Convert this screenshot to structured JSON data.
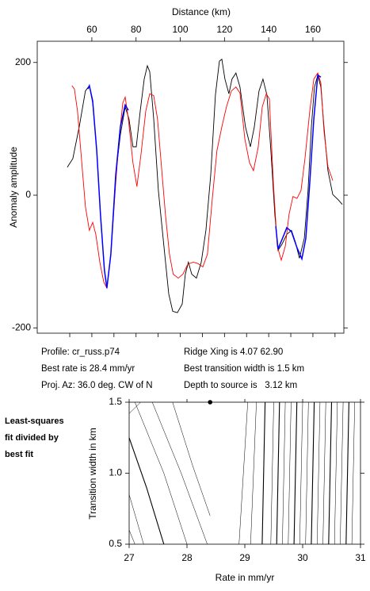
{
  "chart_data": [
    {
      "type": "line",
      "x_label": "Distance (km)",
      "y_label": "Anomaly amplitude",
      "xlim": [
        35.3,
        174
      ],
      "ylim": [
        -208,
        232
      ],
      "xticks": [
        60,
        80,
        100,
        120,
        140,
        160
      ],
      "xminorticks": [
        50,
        60,
        70,
        80,
        90,
        100,
        110,
        120,
        130,
        140,
        150,
        160,
        170
      ],
      "yticks": [
        -200,
        0,
        200
      ],
      "series": [
        {
          "color": "#000000",
          "x": [
            48.9,
            51.4,
            54.3,
            57.1,
            58.9,
            60.4,
            62.2,
            63.9,
            65.7,
            66.8,
            68.6,
            70.8,
            72.9,
            75.1,
            76.8,
            78.6,
            80.1,
            81.9,
            83.7,
            85.1,
            86.2,
            88.0,
            90.1,
            92.6,
            94.8,
            96.6,
            98.7,
            100.9,
            102.3,
            103.7,
            105.2,
            107.3,
            109.5,
            111.6,
            113.8,
            115.9,
            117.7,
            118.8,
            120.2,
            122.0,
            123.4,
            125.2,
            127.0,
            129.5,
            131.7,
            133.5,
            135.6,
            137.4,
            139.2,
            141.0,
            142.8,
            144.2,
            146.0,
            148.2,
            150.3,
            152.1,
            153.9,
            156.1,
            157.8,
            159.3,
            160.7,
            162.2,
            163.6,
            165.0,
            166.8,
            169.0,
            171.5,
            173.3
          ],
          "values": [
            42,
            55,
            103,
            157,
            165,
            139,
            67,
            -29,
            -113,
            -140,
            -89,
            31,
            91,
            133,
            115,
            73,
            73,
            127,
            175,
            195,
            186,
            115,
            7,
            -77,
            -149,
            -175,
            -177,
            -164,
            -119,
            -101,
            -119,
            -125,
            -101,
            -53,
            31,
            151,
            202,
            205,
            175,
            153,
            175,
            184,
            163,
            103,
            73,
            103,
            157,
            175,
            151,
            67,
            -29,
            -83,
            -74,
            -59,
            -53,
            -71,
            -95,
            -65,
            7,
            103,
            163,
            181,
            163,
            103,
            37,
            1,
            -7,
            -14
          ]
        },
        {
          "color": "#ff0000",
          "x": [
            51.0,
            52.1,
            53.5,
            55.3,
            57.1,
            58.9,
            60.4,
            61.8,
            63.6,
            65.4,
            66.8,
            68.6,
            70.8,
            72.5,
            74.0,
            75.1,
            76.5,
            78.6,
            80.4,
            82.2,
            84.4,
            86.2,
            88.0,
            89.7,
            91.5,
            93.3,
            95.1,
            96.8,
            99.1,
            101.2,
            103.4,
            105.9,
            108.0,
            110.2,
            112.3,
            114.5,
            116.6,
            118.8,
            120.9,
            123.1,
            125.2,
            127.0,
            129.2,
            131.3,
            133.1,
            135.3,
            137.1,
            138.9,
            140.3,
            142.1,
            143.9,
            145.7,
            147.5,
            149.2,
            151.0,
            152.8,
            154.6,
            156.4,
            158.6,
            160.4,
            162.2,
            163.6,
            165.0,
            166.8,
            169.0
          ],
          "values": [
            165,
            160,
            127,
            55,
            -17,
            -53,
            -41,
            -59,
            -101,
            -131,
            -140,
            -89,
            19,
            91,
            139,
            148,
            115,
            49,
            13,
            61,
            127,
            153,
            150,
            115,
            43,
            -29,
            -89,
            -119,
            -125,
            -119,
            -104,
            -101,
            -103,
            -108,
            -89,
            -5,
            67,
            103,
            133,
            157,
            163,
            154,
            85,
            49,
            37,
            73,
            133,
            153,
            145,
            19,
            -77,
            -98,
            -77,
            -29,
            -2,
            -5,
            7,
            55,
            127,
            175,
            184,
            169,
            97,
            43,
            22
          ]
        },
        {
          "color": "#0000ff",
          "x": [
            58.2,
            58.9,
            60.4,
            62.2,
            63.9,
            65.7,
            66.8,
            68.6,
            70.8,
            72.9,
            75.1,
            76.5,
            110,
            143.2,
            144.2,
            146.0,
            148.2,
            150.3,
            152.8,
            155.0,
            156.8,
            158.6,
            160.4,
            162.2,
            163.6
          ],
          "values": [
            160,
            165,
            142,
            67,
            -29,
            -113,
            -140,
            -89,
            31,
            103,
            136,
            128,
            null,
            -47,
            -81,
            -67,
            -49,
            -55,
            -79,
            -96,
            -65,
            19,
            115,
            181,
            178
          ]
        }
      ],
      "annotations": [
        "Profile: cr_russ.p74",
        "Best rate is 28.4 mm/yr",
        "Proj. Az: 36.0 deg. CW of N",
        "Ridge Xing is 4.07 62.90",
        "Best transition width is 1.5 km",
        "Depth to source is   3.12 km"
      ]
    },
    {
      "type": "contour",
      "title": [
        "Least-squares",
        "fit divided by",
        "best fit"
      ],
      "x_label": "Rate in mm/yr",
      "y_label": "Transition width in km",
      "xlim": [
        27,
        31
      ],
      "ylim": [
        0.5,
        1.5
      ],
      "xticks": [
        27,
        28,
        29,
        30,
        31
      ],
      "yticks": [
        {
          "value": 0.5,
          "label": "0.5"
        },
        {
          "value": 1.0,
          "label": "1.0"
        },
        {
          "value": 1.5,
          "label": "1.5"
        }
      ],
      "point": {
        "x": 28.4,
        "y": 1.5
      },
      "contours": [
        {
          "x": [
            27.0,
            27.3,
            27.6
          ],
          "y": [
            1.25,
            0.9,
            0.5
          ],
          "bold": true
        },
        {
          "x": [
            27.0,
            27.25
          ],
          "y": [
            0.85,
            0.5
          ]
        },
        {
          "x": [
            27.0,
            27.1
          ],
          "y": [
            0.6,
            0.5
          ]
        },
        {
          "x": [
            27.0,
            27.2
          ],
          "y": [
            1.42,
            1.5
          ]
        },
        {
          "x": [
            27.1,
            27.6,
            28.0
          ],
          "y": [
            1.5,
            1.0,
            0.5
          ]
        },
        {
          "x": [
            27.4,
            27.9,
            28.35
          ],
          "y": [
            1.5,
            1.0,
            0.5
          ]
        },
        {
          "x": [
            27.75,
            28.1,
            28.4
          ],
          "y": [
            1.5,
            1.05,
            0.7
          ]
        },
        {
          "x": [
            28.9,
            29.05
          ],
          "y": [
            0.5,
            1.5
          ]
        },
        {
          "x": [
            29.1,
            29.2
          ],
          "y": [
            0.5,
            1.5
          ]
        },
        {
          "x": [
            29.3,
            29.35
          ],
          "y": [
            0.5,
            1.5
          ],
          "bold": true
        },
        {
          "x": [
            29.45,
            29.5
          ],
          "y": [
            0.5,
            1.5
          ]
        },
        {
          "x": [
            29.55,
            29.6
          ],
          "y": [
            0.5,
            1.5
          ],
          "bold": true
        },
        {
          "x": [
            29.65,
            29.7
          ],
          "y": [
            0.5,
            1.5
          ]
        },
        {
          "x": [
            29.75,
            29.8
          ],
          "y": [
            0.5,
            1.5
          ]
        },
        {
          "x": [
            29.85,
            29.9
          ],
          "y": [
            0.5,
            1.5
          ],
          "bold": true
        },
        {
          "x": [
            29.95,
            30.0
          ],
          "y": [
            0.5,
            1.5
          ]
        },
        {
          "x": [
            30.05,
            30.1
          ],
          "y": [
            0.5,
            1.5
          ]
        },
        {
          "x": [
            30.15,
            30.2
          ],
          "y": [
            0.5,
            1.5
          ],
          "bold": true
        },
        {
          "x": [
            30.25,
            30.3
          ],
          "y": [
            0.5,
            1.5
          ]
        },
        {
          "x": [
            30.35,
            30.4
          ],
          "y": [
            0.5,
            1.5
          ]
        },
        {
          "x": [
            30.45,
            30.5
          ],
          "y": [
            0.5,
            1.5
          ],
          "bold": true
        },
        {
          "x": [
            30.55,
            30.6
          ],
          "y": [
            0.5,
            1.5
          ]
        },
        {
          "x": [
            30.65,
            30.7
          ],
          "y": [
            0.5,
            1.5
          ]
        },
        {
          "x": [
            30.75,
            30.8
          ],
          "y": [
            0.5,
            1.5
          ],
          "bold": true
        },
        {
          "x": [
            30.85,
            30.9
          ],
          "y": [
            0.5,
            1.5
          ]
        }
      ]
    }
  ]
}
